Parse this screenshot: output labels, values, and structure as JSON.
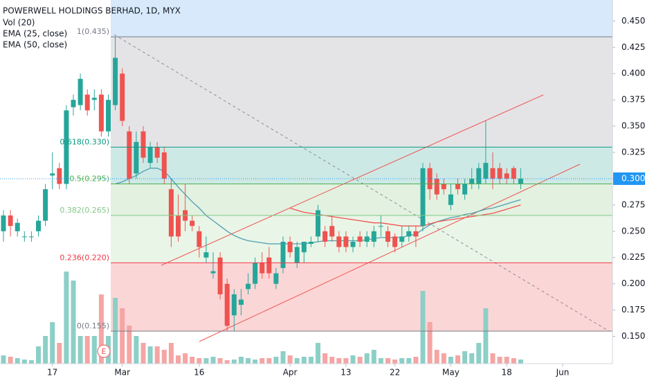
{
  "chart_data": {
    "type": "candlestick",
    "title": "POWERWELL HOLDINGS BERHAD, 1D, MYX",
    "volume_label": "Vol (20)",
    "marker": "E",
    "categories": [
      null,
      null,
      null,
      null,
      null,
      null,
      null,
      "17",
      null,
      null,
      null,
      null,
      null,
      null,
      null,
      null,
      null,
      "Mar",
      null,
      null,
      null,
      null,
      null,
      null,
      null,
      null,
      null,
      null,
      "16",
      null,
      null,
      null,
      null,
      null,
      null,
      null,
      null,
      null,
      null,
      null,
      null,
      "Apr",
      null,
      null,
      null,
      null,
      null,
      null,
      null,
      "13",
      null,
      null,
      null,
      null,
      null,
      null,
      "22",
      null,
      null,
      null,
      null,
      null,
      null,
      null,
      "May",
      null,
      null,
      null,
      null,
      null,
      null,
      null,
      "18",
      null,
      null,
      null,
      null,
      null,
      null,
      null,
      "Jun"
    ],
    "open": [
      0.25,
      0.265,
      0.25,
      0.245,
      0.245,
      0.25,
      0.26,
      0.303,
      0.31,
      0.295,
      0.368,
      0.37,
      0.38,
      0.375,
      0.38,
      0.345,
      0.37,
      0.4,
      0.345,
      0.305,
      0.345,
      0.315,
      0.33,
      0.325,
      0.29,
      0.265,
      0.27,
      0.26,
      0.25,
      0.225,
      0.21,
      0.225,
      0.2,
      0.17,
      0.18,
      0.195,
      0.2,
      0.22,
      0.225,
      0.2,
      0.215,
      0.24,
      0.22,
      0.23,
      0.238,
      0.245,
      0.25,
      0.255,
      0.245,
      0.245,
      0.235,
      0.245,
      0.24,
      0.24,
      0.255,
      0.25,
      0.245,
      0.24,
      0.245,
      0.25,
      0.255,
      0.31,
      0.3,
      0.295,
      0.275,
      0.295,
      0.285,
      0.295,
      0.295,
      0.3,
      0.31,
      0.31,
      0.305,
      0.31,
      0.295,
      null,
      null,
      null,
      null,
      null,
      null
    ],
    "high": [
      0.27,
      0.27,
      0.262,
      0.25,
      0.25,
      0.265,
      0.295,
      0.325,
      0.315,
      0.37,
      0.38,
      0.4,
      0.385,
      0.385,
      0.385,
      0.38,
      0.435,
      0.405,
      0.35,
      0.345,
      0.35,
      0.335,
      0.335,
      0.33,
      0.3,
      0.285,
      0.295,
      0.265,
      0.255,
      0.245,
      0.23,
      0.23,
      0.205,
      0.195,
      0.195,
      0.21,
      0.225,
      0.23,
      0.235,
      0.215,
      0.245,
      0.245,
      0.24,
      0.24,
      0.245,
      0.275,
      0.255,
      0.265,
      0.25,
      0.25,
      0.245,
      0.25,
      0.25,
      0.255,
      0.265,
      0.255,
      0.248,
      0.255,
      0.255,
      0.255,
      0.315,
      0.315,
      0.305,
      0.3,
      0.295,
      0.3,
      0.3,
      0.31,
      0.315,
      0.355,
      0.325,
      0.315,
      0.31,
      0.312,
      0.31,
      null,
      null,
      null,
      null,
      null,
      null
    ],
    "low": [
      0.24,
      0.245,
      0.245,
      0.24,
      0.24,
      0.245,
      0.255,
      0.29,
      0.29,
      0.29,
      0.36,
      0.365,
      0.36,
      0.365,
      0.34,
      0.34,
      0.365,
      0.35,
      0.295,
      0.3,
      0.315,
      0.31,
      0.315,
      0.295,
      0.235,
      0.24,
      0.25,
      0.25,
      0.225,
      0.22,
      0.205,
      0.185,
      0.155,
      0.155,
      0.17,
      0.19,
      0.195,
      0.205,
      0.205,
      0.195,
      0.21,
      0.225,
      0.215,
      0.22,
      0.235,
      0.24,
      0.235,
      0.24,
      0.23,
      0.23,
      0.23,
      0.235,
      0.235,
      0.235,
      0.245,
      0.235,
      0.23,
      0.235,
      0.24,
      0.235,
      0.25,
      0.28,
      0.28,
      0.285,
      0.27,
      0.285,
      0.28,
      0.29,
      0.29,
      0.295,
      0.29,
      0.295,
      0.295,
      0.295,
      0.29,
      null,
      null,
      null,
      null,
      null,
      null
    ],
    "close": [
      0.265,
      0.255,
      0.258,
      0.245,
      0.245,
      0.26,
      0.29,
      0.305,
      0.295,
      0.365,
      0.375,
      0.395,
      0.365,
      0.377,
      0.345,
      0.375,
      0.415,
      0.355,
      0.3,
      0.335,
      0.32,
      0.33,
      0.32,
      0.3,
      0.245,
      0.245,
      0.26,
      0.255,
      0.235,
      0.23,
      0.212,
      0.19,
      0.16,
      0.19,
      0.185,
      0.2,
      0.22,
      0.21,
      0.21,
      0.21,
      0.24,
      0.23,
      0.235,
      0.24,
      0.24,
      0.27,
      0.24,
      0.245,
      0.235,
      0.235,
      0.24,
      0.24,
      0.245,
      0.25,
      0.255,
      0.24,
      0.235,
      0.245,
      0.25,
      0.245,
      0.31,
      0.29,
      0.285,
      0.29,
      0.285,
      0.29,
      0.295,
      0.3,
      0.31,
      0.315,
      0.3,
      0.3,
      0.3,
      0.3,
      0.3,
      null,
      null,
      null,
      null,
      null,
      null
    ],
    "volume": [
      12,
      10,
      8,
      6,
      5,
      25,
      40,
      60,
      30,
      133,
      120,
      40,
      40,
      40,
      100,
      40,
      95,
      80,
      55,
      40,
      30,
      25,
      25,
      20,
      30,
      12,
      15,
      10,
      8,
      8,
      10,
      8,
      5,
      6,
      10,
      8,
      6,
      8,
      8,
      10,
      18,
      12,
      8,
      10,
      10,
      30,
      15,
      10,
      8,
      8,
      12,
      10,
      15,
      20,
      8,
      8,
      6,
      8,
      8,
      10,
      105,
      60,
      20,
      15,
      10,
      12,
      18,
      15,
      30,
      80,
      15,
      10,
      10,
      8,
      6,
      null,
      null,
      null,
      null,
      null,
      null
    ],
    "up_color": "#26a69a",
    "down_color": "#ef5350",
    "volume_up_color": "#8ccfc7",
    "volume_down_color": "#f4a5a4",
    "series": [
      {
        "name": "EMA (25, close)",
        "color": "#4f9eb3",
        "values": [
          null,
          null,
          null,
          null,
          null,
          null,
          null,
          null,
          null,
          null,
          null,
          null,
          null,
          null,
          null,
          null,
          0.295,
          0.297,
          0.3,
          0.303,
          0.307,
          0.31,
          0.31,
          0.307,
          0.3,
          0.292,
          0.285,
          0.278,
          0.272,
          0.265,
          0.26,
          0.255,
          0.25,
          0.246,
          0.243,
          0.241,
          0.24,
          0.239,
          0.238,
          0.238,
          0.238,
          0.238,
          0.238,
          0.238,
          0.239,
          0.24,
          0.241,
          0.241,
          0.241,
          0.241,
          0.241,
          0.241,
          0.242,
          0.243,
          0.244,
          0.244,
          0.244,
          0.244,
          0.246,
          0.247,
          0.252,
          0.256,
          0.259,
          0.261,
          0.263,
          0.264,
          0.266,
          0.267,
          0.269,
          0.271,
          0.272,
          0.274,
          0.276,
          0.278,
          0.28,
          null,
          null,
          null,
          null,
          null,
          null
        ]
      },
      {
        "name": "EMA (50, close)",
        "color": "#ef5350",
        "values": [
          null,
          null,
          null,
          null,
          null,
          null,
          null,
          null,
          null,
          null,
          null,
          null,
          null,
          null,
          null,
          null,
          null,
          null,
          null,
          null,
          null,
          null,
          null,
          null,
          null,
          null,
          null,
          null,
          null,
          null,
          null,
          null,
          null,
          null,
          null,
          null,
          null,
          null,
          null,
          null,
          null,
          0.272,
          0.27,
          0.268,
          0.267,
          0.266,
          0.265,
          0.264,
          0.263,
          0.262,
          0.261,
          0.26,
          0.259,
          0.258,
          0.258,
          0.257,
          0.256,
          0.255,
          0.255,
          0.255,
          0.255,
          0.257,
          0.259,
          0.26,
          0.261,
          0.262,
          0.263,
          0.264,
          0.265,
          0.266,
          0.267,
          0.269,
          0.271,
          0.273,
          0.275,
          null,
          null,
          null,
          null,
          null,
          null
        ]
      }
    ],
    "ylim": [
      0.124,
      0.47
    ],
    "yticks": [
      {
        "value": 0.15,
        "label": "0.150"
      },
      {
        "value": 0.175,
        "label": "0.175"
      },
      {
        "value": 0.2,
        "label": "0.200"
      },
      {
        "value": 0.225,
        "label": "0.225"
      },
      {
        "value": 0.25,
        "label": "0.250"
      },
      {
        "value": 0.275,
        "label": "0.275"
      },
      {
        "value": 0.3,
        "label": "0.300"
      },
      {
        "value": 0.325,
        "label": "0.325"
      },
      {
        "value": 0.35,
        "label": "0.350"
      },
      {
        "value": 0.375,
        "label": "0.375"
      },
      {
        "value": 0.4,
        "label": "0.400"
      },
      {
        "value": 0.425,
        "label": "0.425"
      },
      {
        "value": 0.45,
        "label": "0.450"
      }
    ],
    "last_price": {
      "value": 0.3,
      "label": "0.300",
      "color": "#2196f3"
    },
    "fib_levels": [
      {
        "value": 0.435,
        "label": "1(0.435)",
        "color": "#787b86",
        "fill": "#e4e4e6"
      },
      {
        "value": 0.33,
        "label": "0.618(0.330)",
        "color": "#089981",
        "fill": "#cde9e5"
      },
      {
        "value": 0.295,
        "label": "0.5(0.295)",
        "color": "#4caf50",
        "fill": "#e2f1e0"
      },
      {
        "value": 0.265,
        "label": "0.382(0.265)",
        "color": "#81c784",
        "fill": "#e9f5e7"
      },
      {
        "value": 0.22,
        "label": "0.236(0.220)",
        "color": "#f23645",
        "fill": "#fbd6d6"
      },
      {
        "value": 0.155,
        "label": "0(0.155)",
        "color": "#787b86"
      }
    ],
    "top_fill": "#d7e9fb"
  }
}
